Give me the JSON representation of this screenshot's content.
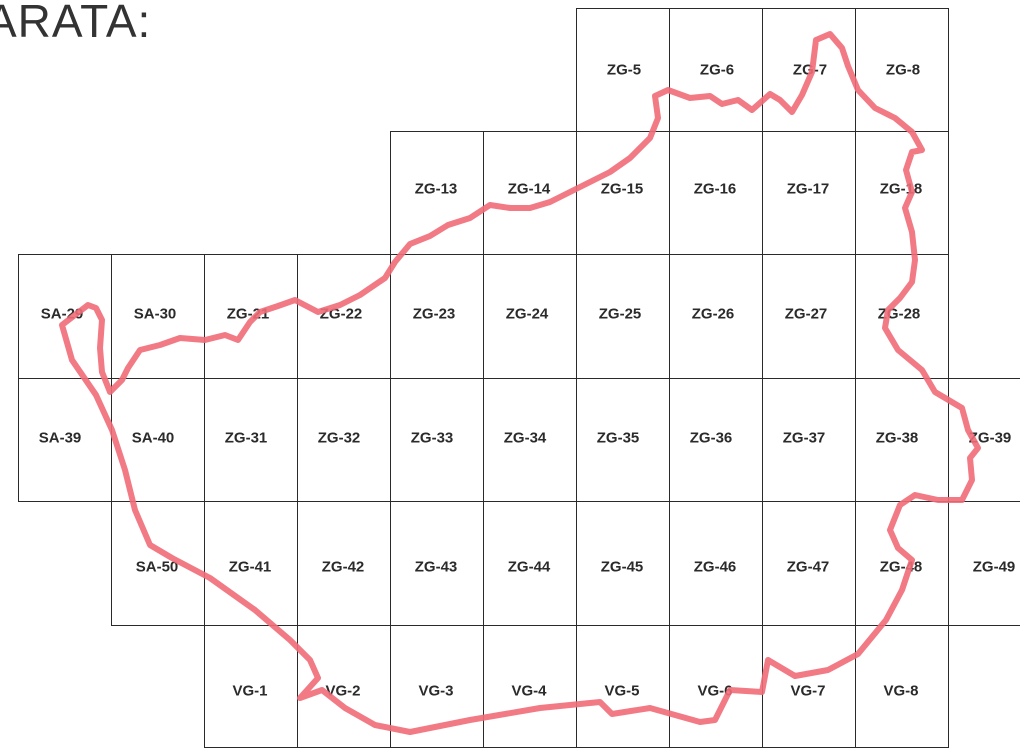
{
  "page": {
    "title": "ARATA:"
  },
  "map": {
    "boundary_color": "#f06b78",
    "grid_line_color": "#2a2a2a",
    "sheets": [
      "ZG-5",
      "ZG-6",
      "ZG-7",
      "ZG-8",
      "ZG-13",
      "ZG-14",
      "ZG-15",
      "ZG-16",
      "ZG-17",
      "ZG-18",
      "SA-29",
      "SA-30",
      "ZG-21",
      "ZG-22",
      "ZG-23",
      "ZG-24",
      "ZG-25",
      "ZG-26",
      "ZG-27",
      "ZG-28",
      "SA-39",
      "SA-40",
      "ZG-31",
      "ZG-32",
      "ZG-33",
      "ZG-34",
      "ZG-35",
      "ZG-36",
      "ZG-37",
      "ZG-38",
      "ZG-39",
      "SA-50",
      "ZG-41",
      "ZG-42",
      "ZG-43",
      "ZG-44",
      "ZG-45",
      "ZG-46",
      "ZG-47",
      "ZG-48",
      "ZG-49",
      "VG-1",
      "VG-2",
      "VG-3",
      "VG-4",
      "VG-5",
      "VG-6",
      "VG-7",
      "VG-8"
    ]
  }
}
